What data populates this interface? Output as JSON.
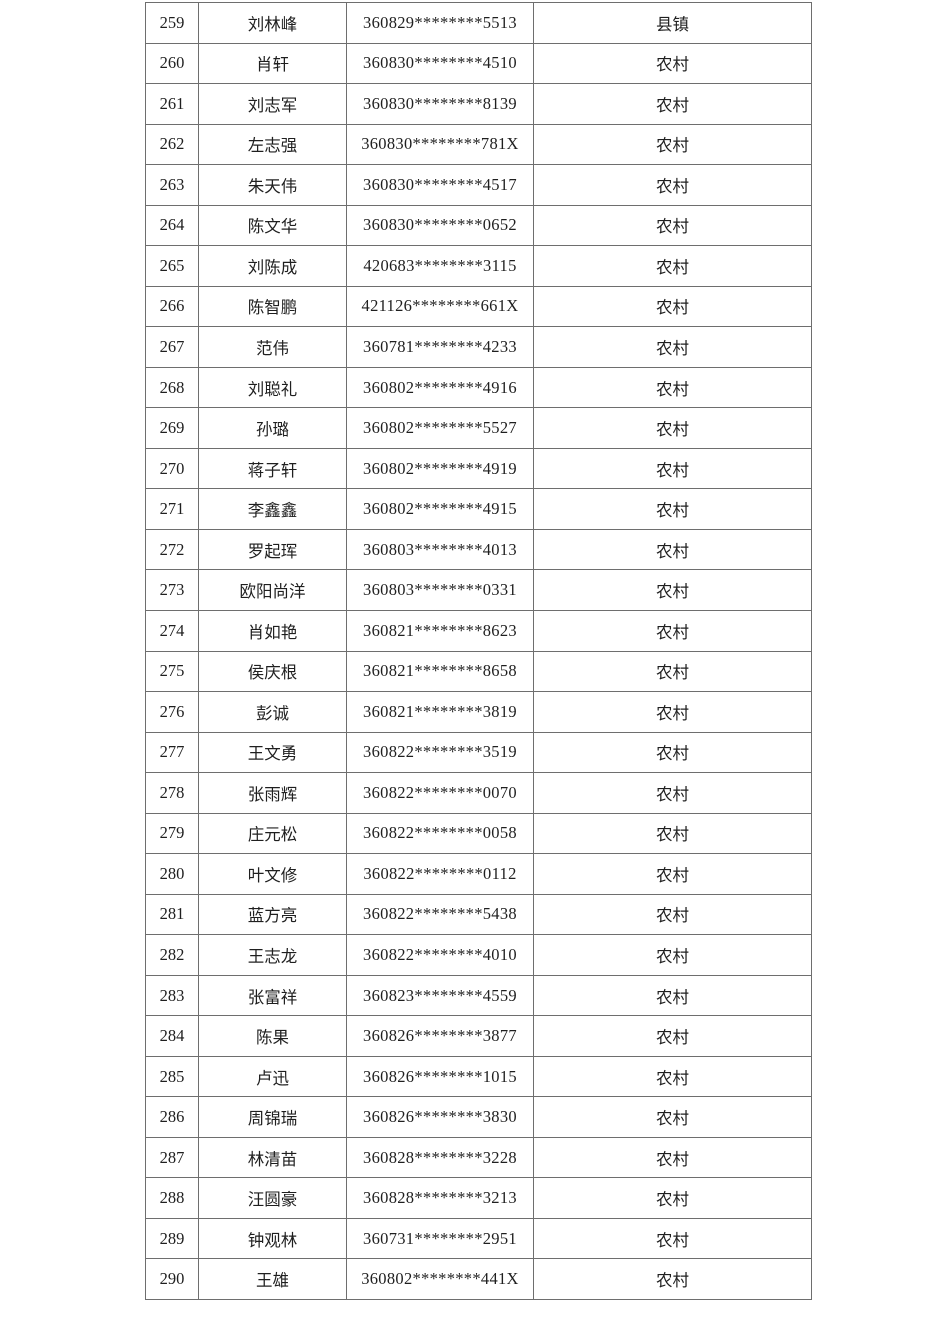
{
  "palette": {
    "background": "#ffffff",
    "border": "#6e6e6e",
    "text": "#1f1f1f"
  },
  "table": {
    "rows": [
      {
        "index": "259",
        "name": "刘林峰",
        "id": "360829********5513",
        "category": "县镇",
        "small": false
      },
      {
        "index": "260",
        "name": "肖轩",
        "id": "360830********4510",
        "category": "农村",
        "small": false
      },
      {
        "index": "261",
        "name": "刘志军",
        "id": "360830********8139",
        "category": "农村",
        "small": false
      },
      {
        "index": "262",
        "name": "左志强",
        "id": "360830********781X",
        "category": "农村",
        "small": false
      },
      {
        "index": "263",
        "name": "朱天伟",
        "id": "360830********4517",
        "category": "农村",
        "small": false
      },
      {
        "index": "264",
        "name": "陈文华",
        "id": "360830********0652",
        "category": "农村",
        "small": false
      },
      {
        "index": "265",
        "name": "刘陈成",
        "id": "420683********3115",
        "category": "农村",
        "small": false
      },
      {
        "index": "266",
        "name": "陈智鹏",
        "id": "421126********661X",
        "category": "农村",
        "small": false
      },
      {
        "index": "267",
        "name": "范伟",
        "id": "360781********4233",
        "category": "农村",
        "small": false
      },
      {
        "index": "268",
        "name": "刘聪礼",
        "id": "360802********4916",
        "category": "农村",
        "small": false
      },
      {
        "index": "269",
        "name": "孙璐",
        "id": "360802********5527",
        "category": "农村",
        "small": false
      },
      {
        "index": "270",
        "name": "蒋子轩",
        "id": "360802********4919",
        "category": "农村",
        "small": false
      },
      {
        "index": "271",
        "name": "李鑫鑫",
        "id": "360802********4915",
        "category": "农村",
        "small": false
      },
      {
        "index": "272",
        "name": "罗起珲",
        "id": "360803********4013",
        "category": "农村",
        "small": false
      },
      {
        "index": "273",
        "name": "欧阳尚洋",
        "id": "360803********0331",
        "category": "农村",
        "small": false
      },
      {
        "index": "274",
        "name": "肖如艳",
        "id": "360821********8623",
        "category": "农村",
        "small": false
      },
      {
        "index": "275",
        "name": "侯庆根",
        "id": "360821********8658",
        "category": "农村",
        "small": false
      },
      {
        "index": "276",
        "name": "彭诚",
        "id": "360821********3819",
        "category": "农村",
        "small": false
      },
      {
        "index": "277",
        "name": "王文勇",
        "id": "360822********3519",
        "category": "农村",
        "small": false
      },
      {
        "index": "278",
        "name": "张雨辉",
        "id": "360822********0070",
        "category": "农村",
        "small": false
      },
      {
        "index": "279",
        "name": "庄元松",
        "id": "360822********0058",
        "category": "农村",
        "small": false
      },
      {
        "index": "280",
        "name": "叶文修",
        "id": "360822********0112",
        "category": "农村",
        "small": false
      },
      {
        "index": "281",
        "name": "蓝方亮",
        "id": "360822********5438",
        "category": "农村",
        "small": false
      },
      {
        "index": "282",
        "name": "王志龙",
        "id": "360822********4010",
        "category": "农村",
        "small": false
      },
      {
        "index": "283",
        "name": "张富祥",
        "id": "360823********4559",
        "category": "农村",
        "small": false
      },
      {
        "index": "284",
        "name": "陈果",
        "id": "360826********3877",
        "category": "农村",
        "small": false
      },
      {
        "index": "285",
        "name": "卢迅",
        "id": "360826********1015",
        "category": "农村",
        "small": false
      },
      {
        "index": "286",
        "name": "周锦瑞",
        "id": "360826********3830",
        "category": "农村",
        "small": false
      },
      {
        "index": "287",
        "name": "林清苗",
        "id": "360828********3228",
        "category": "农村",
        "small": false
      },
      {
        "index": "288",
        "name": "汪圆豪",
        "id": "360828********3213",
        "category": "农村",
        "small": false
      },
      {
        "index": "289",
        "name": "钟观林",
        "id": "360731********2951",
        "category": "农村",
        "small": true
      },
      {
        "index": "290",
        "name": "王雄",
        "id": "360802********441X",
        "category": "农村",
        "small": false
      }
    ]
  }
}
